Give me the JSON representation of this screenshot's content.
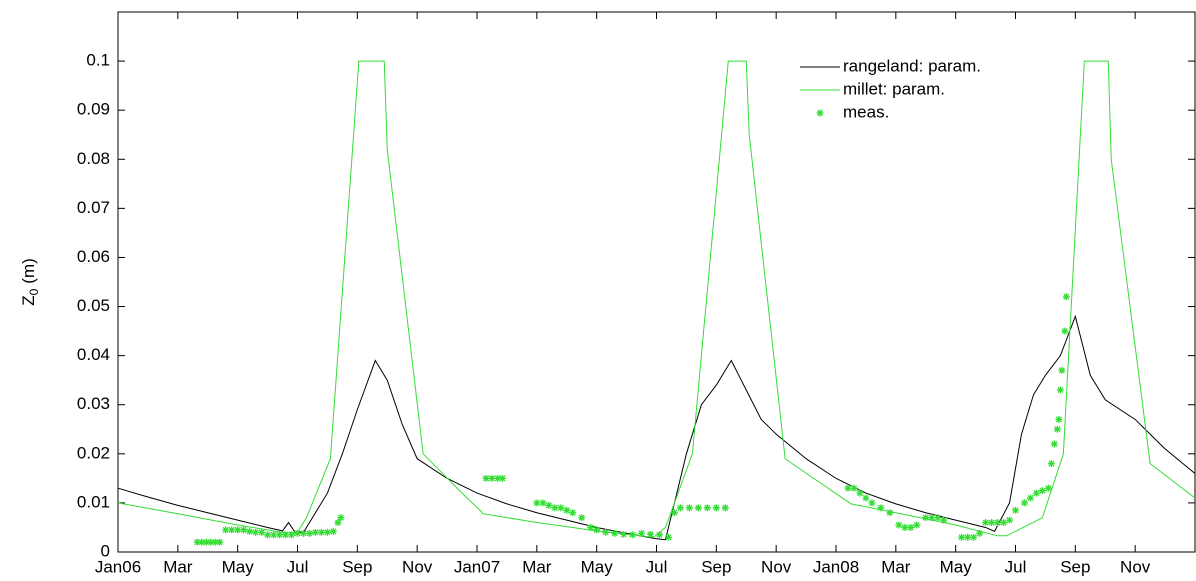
{
  "chart_data": {
    "type": "line",
    "ylabel": {
      "main": "Z",
      "sub": "0",
      "unit": "(m)"
    },
    "xlim": [
      0,
      36
    ],
    "ylim": [
      0,
      0.11
    ],
    "xticks": [
      {
        "value": 0,
        "label": "Jan06"
      },
      {
        "value": 2,
        "label": "Mar"
      },
      {
        "value": 4,
        "label": "May"
      },
      {
        "value": 6,
        "label": "Jul"
      },
      {
        "value": 8,
        "label": "Sep"
      },
      {
        "value": 10,
        "label": "Nov"
      },
      {
        "value": 12,
        "label": "Jan07"
      },
      {
        "value": 14,
        "label": "Mar"
      },
      {
        "value": 16,
        "label": "May"
      },
      {
        "value": 18,
        "label": "Jul"
      },
      {
        "value": 20,
        "label": "Sep"
      },
      {
        "value": 22,
        "label": "Nov"
      },
      {
        "value": 24,
        "label": "Jan08"
      },
      {
        "value": 26,
        "label": "Mar"
      },
      {
        "value": 28,
        "label": "May"
      },
      {
        "value": 30,
        "label": "Jul"
      },
      {
        "value": 32,
        "label": "Sep"
      },
      {
        "value": 34,
        "label": "Nov"
      }
    ],
    "yticks": [
      0,
      0.01,
      0.02,
      0.03,
      0.04,
      0.05,
      0.06,
      0.07,
      0.08,
      0.09,
      0.1
    ],
    "legend": "upper right",
    "series": [
      {
        "name": "rangeland: param.",
        "color": "#000000",
        "style": "line",
        "x": [
          0,
          1,
          2,
          3,
          4,
          5,
          5.5,
          5.7,
          5.9,
          6.2,
          7,
          7.5,
          8,
          8.6,
          9,
          9.5,
          10,
          11,
          12,
          13,
          14,
          15,
          16,
          17,
          18,
          18.3,
          19,
          19.5,
          20,
          20.5,
          21,
          21.5,
          22,
          23,
          24,
          25,
          26,
          27,
          28,
          29,
          29.3,
          29.8,
          30.2,
          30.6,
          31,
          31.5,
          32,
          32.5,
          33,
          34,
          35,
          36
        ],
        "values": [
          0.013,
          0.0112,
          0.0095,
          0.008,
          0.0065,
          0.005,
          0.0043,
          0.006,
          0.0042,
          0.004,
          0.012,
          0.02,
          0.029,
          0.039,
          0.035,
          0.026,
          0.019,
          0.015,
          0.012,
          0.0098,
          0.008,
          0.0065,
          0.005,
          0.0038,
          0.0027,
          0.0025,
          0.02,
          0.03,
          0.034,
          0.039,
          0.033,
          0.027,
          0.024,
          0.019,
          0.015,
          0.012,
          0.0098,
          0.008,
          0.0065,
          0.005,
          0.0042,
          0.01,
          0.024,
          0.032,
          0.036,
          0.04,
          0.048,
          0.036,
          0.031,
          0.027,
          0.021,
          0.016
        ]
      },
      {
        "name": "millet: param.",
        "color": "#33dd33",
        "style": "line",
        "x": [
          0,
          2,
          4,
          5.5,
          6,
          6.3,
          7.1,
          8.05,
          8.9,
          9,
          10.2,
          11.5,
          12.1,
          12.2,
          14,
          16,
          17.9,
          18.3,
          19.2,
          20.4,
          21,
          21.1,
          22.3,
          24.5,
          26,
          28,
          29.4,
          29.7,
          30.9,
          31.6,
          32.3,
          33.1,
          33.2,
          34.5,
          36
        ],
        "values": [
          0.01,
          0.0078,
          0.0055,
          0.004,
          0.004,
          0.007,
          0.019,
          0.1,
          0.1,
          0.082,
          0.02,
          0.012,
          0.0085,
          0.0078,
          0.006,
          0.0043,
          0.003,
          0.005,
          0.02,
          0.1,
          0.1,
          0.085,
          0.019,
          0.0098,
          0.008,
          0.0055,
          0.0033,
          0.0033,
          0.007,
          0.02,
          0.1,
          0.1,
          0.08,
          0.018,
          0.011
        ]
      },
      {
        "name": "meas.",
        "color": "#33dd33",
        "style": "markers",
        "x": [
          2.65,
          2.8,
          2.95,
          3.1,
          3.25,
          3.4,
          3.6,
          3.8,
          4.0,
          4.2,
          4.4,
          4.6,
          4.8,
          5.0,
          5.2,
          5.4,
          5.6,
          5.8,
          6.0,
          6.2,
          6.4,
          6.6,
          6.8,
          7.0,
          7.2,
          7.35,
          7.45,
          12.3,
          12.5,
          12.7,
          12.85,
          14.0,
          14.2,
          14.4,
          14.6,
          14.8,
          15.0,
          15.2,
          15.5,
          15.8,
          16.0,
          16.3,
          16.6,
          16.9,
          17.2,
          17.5,
          17.8,
          18.1,
          18.4,
          18.6,
          18.8,
          19.1,
          19.4,
          19.7,
          20.0,
          20.3,
          24.4,
          24.6,
          24.8,
          25.0,
          25.2,
          25.5,
          25.8,
          26.1,
          26.3,
          26.5,
          26.7,
          27.0,
          27.2,
          27.4,
          27.6,
          28.2,
          28.4,
          28.6,
          28.8,
          29.0,
          29.2,
          29.4,
          29.6,
          29.8,
          30.0,
          30.3,
          30.5,
          30.7,
          30.9,
          31.1,
          31.2,
          31.3,
          31.4,
          31.45,
          31.5,
          31.55,
          31.65,
          31.7
        ],
        "values": [
          0.002,
          0.002,
          0.002,
          0.002,
          0.002,
          0.002,
          0.0045,
          0.0045,
          0.0045,
          0.0045,
          0.0042,
          0.004,
          0.004,
          0.0035,
          0.0035,
          0.0035,
          0.0035,
          0.0035,
          0.0038,
          0.0038,
          0.0038,
          0.004,
          0.004,
          0.004,
          0.0042,
          0.006,
          0.007,
          0.015,
          0.015,
          0.015,
          0.015,
          0.01,
          0.01,
          0.0095,
          0.009,
          0.009,
          0.0085,
          0.008,
          0.007,
          0.005,
          0.0045,
          0.004,
          0.0038,
          0.0036,
          0.0035,
          0.0038,
          0.0036,
          0.0035,
          0.003,
          0.008,
          0.009,
          0.009,
          0.009,
          0.009,
          0.009,
          0.009,
          0.013,
          0.013,
          0.012,
          0.011,
          0.01,
          0.009,
          0.008,
          0.0055,
          0.005,
          0.005,
          0.0055,
          0.007,
          0.007,
          0.007,
          0.0065,
          0.003,
          0.003,
          0.003,
          0.0038,
          0.006,
          0.006,
          0.006,
          0.006,
          0.0065,
          0.0085,
          0.01,
          0.011,
          0.012,
          0.0125,
          0.013,
          0.018,
          0.022,
          0.025,
          0.027,
          0.033,
          0.037,
          0.045,
          0.052
        ]
      }
    ]
  }
}
